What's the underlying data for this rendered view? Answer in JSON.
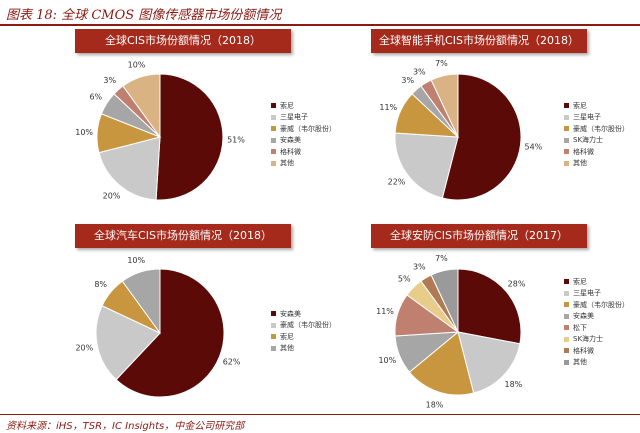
{
  "figure_title": "图表 18: 全球 CMOS 图像传感器市场份额情况",
  "source": "资料来源：iHS，TSR，IC Insights，中金公司研究部",
  "colors": {
    "sony": "#5c0a07",
    "samsung": "#c9c9c9",
    "omnivision": "#c8963e",
    "onsemi": "#a6a6a6",
    "galaxycore": "#c08070",
    "other": "#d9b383",
    "panasonic": "#e8cd8a",
    "skhynix": "#9a9a9a"
  },
  "chart_data": [
    {
      "type": "pie",
      "title": "全球CIS市场份额情况（2018）",
      "labels": [
        "索尼",
        "三星电子",
        "豪威（韦尔股份）",
        "安森美",
        "格科微",
        "其他"
      ],
      "values": [
        51,
        20,
        10,
        6,
        3,
        10
      ],
      "value_labels": [
        "51%",
        "20%",
        "10%",
        "6%",
        "3%",
        "10%"
      ],
      "colors": [
        "#5c0a07",
        "#c9c9c9",
        "#c8963e",
        "#a6a6a6",
        "#c08070",
        "#d9b383"
      ],
      "legend": "right"
    },
    {
      "type": "pie",
      "title": "全球智能手机CIS市场份额情况（2018）",
      "labels": [
        "索尼",
        "三星电子",
        "豪威（韦尔股份）",
        "SK海力士",
        "格科微",
        "其他"
      ],
      "values": [
        54,
        22,
        11,
        3,
        3,
        7
      ],
      "value_labels": [
        "54%",
        "22%",
        "11%",
        "3%",
        "3%",
        "7%"
      ],
      "colors": [
        "#5c0a07",
        "#c9c9c9",
        "#c8963e",
        "#a6a6a6",
        "#c08070",
        "#d9b383"
      ],
      "legend": "right"
    },
    {
      "type": "pie",
      "title": "全球汽车CIS市场份额情况（2018）",
      "labels": [
        "安森美",
        "豪威（韦尔股份）",
        "索尼",
        "其他"
      ],
      "values": [
        62,
        20,
        8,
        10
      ],
      "value_labels": [
        "62%",
        "20%",
        "8%",
        "10%"
      ],
      "colors": [
        "#5c0a07",
        "#c9c9c9",
        "#c8963e",
        "#a6a6a6"
      ],
      "legend": "right"
    },
    {
      "type": "pie",
      "title": "全球安防CIS市场份额情况（2017）",
      "labels": [
        "索尼",
        "三星电子",
        "豪威（韦尔股份）",
        "安森美",
        "松下",
        "SK海力士",
        "格科微",
        "其他"
      ],
      "values": [
        28,
        18,
        18,
        10,
        11,
        5,
        3,
        7
      ],
      "value_labels": [
        "28%",
        "18%",
        "18%",
        "10%",
        "11%",
        "5%",
        "3%",
        "7%"
      ],
      "colors": [
        "#5c0a07",
        "#c9c9c9",
        "#c8963e",
        "#a6a6a6",
        "#c08070",
        "#e8cd8a",
        "#b07a55",
        "#9a9a9a"
      ],
      "legend": "right"
    }
  ]
}
